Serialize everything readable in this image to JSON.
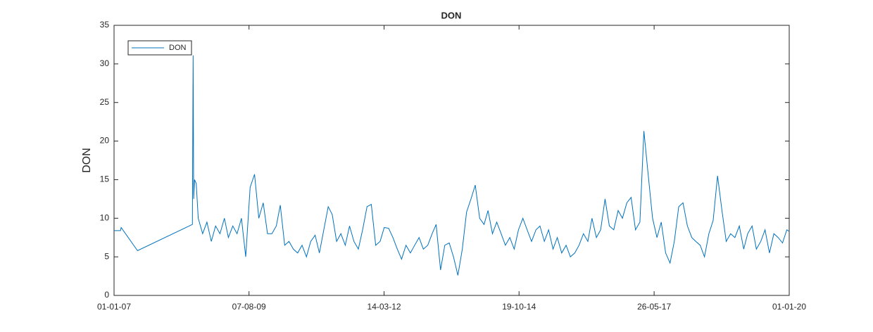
{
  "chart_data": {
    "type": "line",
    "title": "DON",
    "ylabel": "DON",
    "x": [
      "2007-01-01",
      "2007-02-15",
      "2007-02-20",
      "2007-06-15",
      "2008-07-05",
      "2008-07-10",
      "2008-07-14",
      "2008-07-20",
      "2008-08-01",
      "2008-08-15",
      "2008-09-15",
      "2008-10-15",
      "2008-11-15",
      "2008-12-15",
      "2009-01-15",
      "2009-02-15",
      "2009-03-15",
      "2009-04-15",
      "2009-05-15",
      "2009-06-15",
      "2009-07-15",
      "2009-08-15",
      "2009-09-15",
      "2009-10-15",
      "2009-11-15",
      "2009-12-15",
      "2010-01-15",
      "2010-02-15",
      "2010-03-15",
      "2010-04-15",
      "2010-05-15",
      "2010-06-15",
      "2010-07-15",
      "2010-08-15",
      "2010-09-15",
      "2010-10-15",
      "2010-11-15",
      "2010-12-15",
      "2011-01-15",
      "2011-02-15",
      "2011-03-15",
      "2011-04-15",
      "2011-05-15",
      "2011-06-15",
      "2011-07-15",
      "2011-08-15",
      "2011-09-15",
      "2011-10-15",
      "2011-11-15",
      "2011-12-15",
      "2012-01-15",
      "2012-02-15",
      "2012-03-15",
      "2012-04-15",
      "2012-05-15",
      "2012-06-15",
      "2012-07-15",
      "2012-08-15",
      "2012-09-15",
      "2012-10-15",
      "2012-11-15",
      "2012-12-15",
      "2013-01-15",
      "2013-02-15",
      "2013-03-15",
      "2013-04-15",
      "2013-05-15",
      "2013-06-15",
      "2013-07-15",
      "2013-08-15",
      "2013-09-15",
      "2013-10-15",
      "2013-11-15",
      "2013-12-15",
      "2014-01-15",
      "2014-02-15",
      "2014-03-15",
      "2014-04-15",
      "2014-05-15",
      "2014-06-15",
      "2014-07-15",
      "2014-08-15",
      "2014-09-15",
      "2014-10-15",
      "2014-11-15",
      "2014-12-15",
      "2015-01-15",
      "2015-02-15",
      "2015-03-15",
      "2015-04-15",
      "2015-05-15",
      "2015-06-15",
      "2015-07-15",
      "2015-08-15",
      "2015-09-15",
      "2015-10-15",
      "2015-11-15",
      "2015-12-15",
      "2016-01-15",
      "2016-02-15",
      "2016-03-15",
      "2016-04-15",
      "2016-05-15",
      "2016-06-15",
      "2016-07-15",
      "2016-08-15",
      "2016-09-15",
      "2016-10-15",
      "2016-11-15",
      "2016-12-15",
      "2017-01-15",
      "2017-02-15",
      "2017-03-15",
      "2017-04-15",
      "2017-05-15",
      "2017-06-15",
      "2017-07-15",
      "2017-08-15",
      "2017-09-15",
      "2017-10-15",
      "2017-11-15",
      "2017-12-15",
      "2018-01-15",
      "2018-02-15",
      "2018-03-15",
      "2018-04-15",
      "2018-05-15",
      "2018-06-15",
      "2018-07-15",
      "2018-08-15",
      "2018-09-15",
      "2018-10-15",
      "2018-11-15",
      "2018-12-15",
      "2019-01-15",
      "2019-02-15",
      "2019-03-15",
      "2019-04-15",
      "2019-05-15",
      "2019-06-15",
      "2019-07-15",
      "2019-08-15",
      "2019-09-15",
      "2019-10-15",
      "2019-11-15",
      "2019-12-15",
      "2020-01-01"
    ],
    "series": [
      {
        "name": "DON",
        "color": "#0072bd",
        "values": [
          8.4,
          8.4,
          8.8,
          5.8,
          9.2,
          31.1,
          12.5,
          15,
          14.5,
          10,
          8,
          9.5,
          7,
          9,
          8,
          10,
          7.5,
          9,
          8,
          10,
          5,
          14,
          15.7,
          10,
          12,
          8,
          8,
          9,
          11.7,
          6.5,
          7,
          6,
          5.5,
          6.5,
          5,
          7,
          7.8,
          5.5,
          8.5,
          11.5,
          10.5,
          7,
          8,
          6.5,
          9,
          7,
          6,
          8.5,
          11.5,
          11.8,
          6.5,
          7,
          8.8,
          8.7,
          7.5,
          6,
          4.7,
          6.5,
          5.5,
          6.5,
          7.5,
          6,
          6.5,
          8,
          9.2,
          3.3,
          6.5,
          6.8,
          5,
          2.6,
          6,
          10.8,
          12.5,
          14.3,
          10,
          9.2,
          11,
          8,
          9.5,
          8,
          6.5,
          7.5,
          6,
          8.5,
          10,
          8.5,
          7,
          8.5,
          9,
          7,
          8.5,
          6,
          7.5,
          5.5,
          6.5,
          5,
          5.5,
          6.5,
          8,
          7,
          10,
          7.5,
          8.5,
          12.5,
          9,
          8.5,
          11,
          10,
          12,
          12.7,
          8.5,
          9.5,
          21.3,
          15.5,
          10,
          7.5,
          9.5,
          5.5,
          4.2,
          7,
          11.5,
          12,
          9,
          7.5,
          7,
          6.5,
          5,
          8,
          9.7,
          15.5,
          11,
          7,
          8,
          7.5,
          9,
          6,
          8,
          9,
          6,
          7,
          8.5,
          5.5,
          8,
          7.5,
          6.8,
          8.5,
          8.3
        ]
      }
    ],
    "xlim": [
      "2007-01-01",
      "2020-01-01"
    ],
    "xticks": [
      {
        "value": "2007-01-01",
        "label": "01-01-07"
      },
      {
        "value": "2009-08-07",
        "label": "07-08-09"
      },
      {
        "value": "2012-03-14",
        "label": "14-03-12"
      },
      {
        "value": "2014-10-19",
        "label": "19-10-14"
      },
      {
        "value": "2017-05-26",
        "label": "26-05-17"
      },
      {
        "value": "2020-01-01",
        "label": "01-01-20"
      }
    ],
    "ylim": [
      0,
      35
    ],
    "yticks": [
      0,
      5,
      10,
      15,
      20,
      25,
      30,
      35
    ],
    "grid": false,
    "legend": "northwest"
  }
}
